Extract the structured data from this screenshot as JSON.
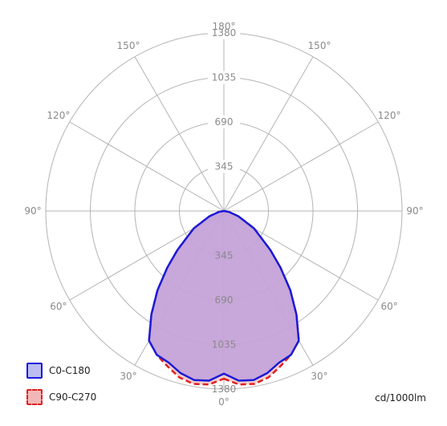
{
  "chart_data": {
    "type": "polar",
    "units": "cd/1000lm",
    "radial_ticks": [
      345,
      690,
      1035,
      1380
    ],
    "r_max": 1380,
    "angle_labels": [
      "0°",
      "30°",
      "60°",
      "90°",
      "120°",
      "150°",
      "180°",
      "150°",
      "120°",
      "90°",
      "60°",
      "30°"
    ],
    "series": [
      {
        "name": "C0-C180",
        "color": "#1a1ad8",
        "fill": "#bfa0dc",
        "dash": false,
        "angles": [
          0,
          5,
          10,
          15,
          20,
          25,
          30,
          35,
          40,
          45,
          50,
          60,
          70,
          80,
          90
        ],
        "values": [
          1260,
          1320,
          1330,
          1300,
          1250,
          1230,
          1160,
          980,
          800,
          620,
          470,
          270,
          120,
          40,
          0
        ]
      },
      {
        "name": "C90-C270",
        "color": "#e02020",
        "fill": "#f2b8b8",
        "dash": true,
        "angles": [
          0,
          5,
          10,
          15,
          20,
          25,
          30,
          35,
          40,
          45,
          50,
          60,
          70,
          80,
          90
        ],
        "values": [
          1300,
          1350,
          1360,
          1335,
          1280,
          1230,
          1160,
          980,
          800,
          620,
          470,
          270,
          120,
          40,
          0
        ]
      }
    ]
  }
}
